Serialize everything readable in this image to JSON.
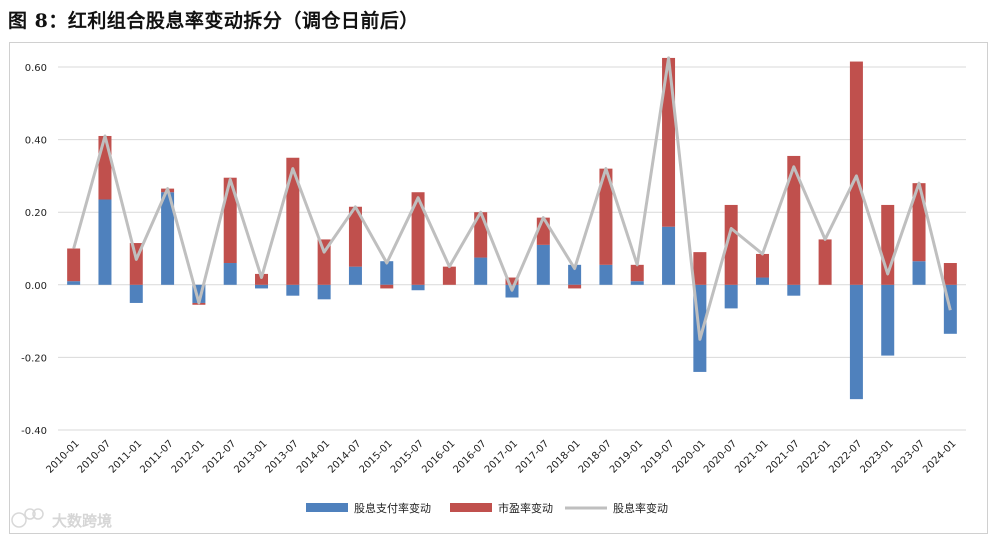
{
  "title": "图 8：红利组合股息率变动拆分（调仓日前后）",
  "watermark": "大数跨境",
  "colors": {
    "dividend": "#4f81bd",
    "pe": "#c0504d",
    "total": "#bfbfbf",
    "grid": "#d9d9d9"
  },
  "chart_data": {
    "type": "bar",
    "stacked": true,
    "title": "",
    "xlabel": "",
    "ylabel": "",
    "ylim": [
      -0.4,
      0.6
    ],
    "yticks": [
      "0.60",
      "0.40",
      "0.20",
      "0.00",
      "-0.20",
      "-0.40"
    ],
    "ytick_values": [
      0.6,
      0.4,
      0.2,
      0.0,
      -0.2,
      -0.4
    ],
    "grid": true,
    "legend_position": "bottom",
    "categories": [
      "2010-01",
      "2010-07",
      "2011-01",
      "2011-07",
      "2012-01",
      "2012-07",
      "2013-01",
      "2013-07",
      "2014-01",
      "2014-07",
      "2015-01",
      "2015-07",
      "2016-01",
      "2016-07",
      "2017-01",
      "2017-07",
      "2018-01",
      "2018-07",
      "2019-01",
      "2019-07",
      "2020-01",
      "2020-07",
      "2021-01",
      "2021-07",
      "2022-01",
      "2022-07",
      "2023-01",
      "2023-07",
      "2024-01"
    ],
    "series": [
      {
        "name": "股息支付率变动",
        "kind": "bar",
        "values": [
          0.01,
          0.235,
          -0.05,
          0.255,
          -0.05,
          0.06,
          -0.01,
          -0.03,
          -0.04,
          0.05,
          0.065,
          -0.015,
          0.0,
          0.075,
          -0.035,
          0.11,
          0.055,
          0.055,
          0.01,
          0.16,
          -0.24,
          -0.065,
          0.02,
          -0.03,
          0.0,
          -0.315,
          -0.195,
          0.065,
          -0.135
        ]
      },
      {
        "name": "市盈率变动",
        "kind": "bar",
        "values": [
          0.09,
          0.175,
          0.115,
          0.01,
          -0.005,
          0.235,
          0.03,
          0.35,
          0.125,
          0.165,
          -0.01,
          0.255,
          0.05,
          0.125,
          0.02,
          0.075,
          -0.01,
          0.265,
          0.045,
          0.465,
          0.09,
          0.22,
          0.065,
          0.355,
          0.125,
          0.615,
          0.22,
          0.215,
          0.06
        ]
      },
      {
        "name": "股息率变动",
        "kind": "line",
        "values": [
          0.1,
          0.41,
          0.07,
          0.265,
          -0.05,
          0.29,
          0.02,
          0.32,
          0.09,
          0.215,
          0.06,
          0.24,
          0.05,
          0.2,
          -0.015,
          0.185,
          0.045,
          0.32,
          0.055,
          0.625,
          -0.15,
          0.155,
          0.085,
          0.325,
          0.125,
          0.3,
          0.03,
          0.28,
          -0.07
        ]
      }
    ]
  }
}
